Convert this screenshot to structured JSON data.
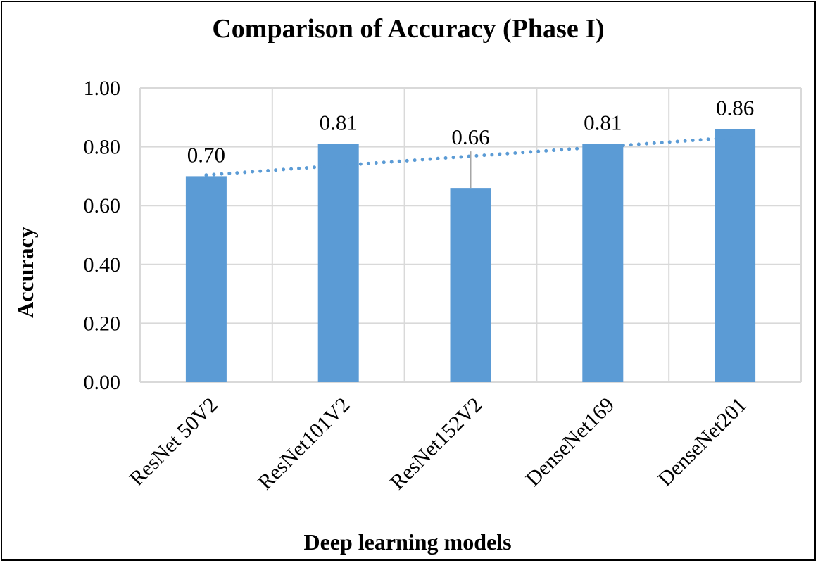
{
  "chart_data": {
    "type": "bar",
    "title": "Comparison of Accuracy (Phase I)",
    "xlabel": "Deep learning models",
    "ylabel": "Accuracy",
    "categories": [
      "ResNet 50V2",
      "ResNet101V2",
      "ResNet152V2",
      "DenseNet169",
      "DenseNet201"
    ],
    "values": [
      0.7,
      0.81,
      0.66,
      0.81,
      0.86
    ],
    "data_labels": [
      "0.70",
      "0.81",
      "0.66",
      "0.81",
      "0.86"
    ],
    "ylim": [
      0,
      1.0
    ],
    "yticks": [
      0.0,
      0.2,
      0.4,
      0.6,
      0.8,
      1.0
    ],
    "ytick_labels": [
      "0.00",
      "0.20",
      "0.40",
      "0.60",
      "0.80",
      "1.00"
    ],
    "grid": true,
    "legend": "none",
    "trendline": "linear, dotted",
    "colors": {
      "bar": "#5B9BD5",
      "trendline": "#5B9BD5",
      "grid": "#D9D9D9",
      "leader_line": "#A6A6A6"
    }
  }
}
